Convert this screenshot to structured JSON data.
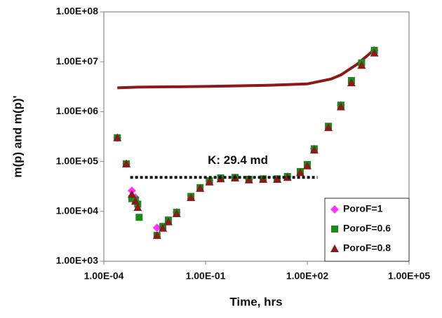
{
  "chart_data": {
    "type": "scatter",
    "x_label": "Time, hrs",
    "y_label": "m(p) and m(p)'",
    "log_x": true,
    "log_y": true,
    "legend": "lower right",
    "xlim": [
      0.0001,
      100000
    ],
    "xticks": [
      {
        "value": 0.0001,
        "label": "1.00E-04"
      },
      {
        "value": 0.1,
        "label": "1.00E-01"
      },
      {
        "value": 100,
        "label": "1.00E+02"
      },
      {
        "value": 100000,
        "label": "1.00E+05"
      }
    ],
    "ylim": [
      1000,
      100000000
    ],
    "yticks": [
      {
        "value": 1000,
        "label": "1.00E+03"
      },
      {
        "value": 10000,
        "label": "1.00E+04"
      },
      {
        "value": 100000,
        "label": "1.00E+05"
      },
      {
        "value": 1000000,
        "label": "1.00E+06"
      },
      {
        "value": 10000000,
        "label": "1.00E+07"
      },
      {
        "value": 100000000,
        "label": "1.00E+08"
      }
    ],
    "pressure": {
      "color": "#8b1a1a",
      "x": [
        0.00025,
        0.001,
        0.01,
        0.1,
        1,
        10,
        100,
        500,
        1000,
        3000,
        10000
      ],
      "values": [
        3000000,
        3100000,
        3150000,
        3200000,
        3300000,
        3400000,
        3600000,
        4500000,
        5500000,
        9000000,
        18000000
      ]
    },
    "series": [
      {
        "name": "PoroF=1",
        "color": "#ff33ff",
        "marker": "diamond",
        "x": [
          0.00025,
          0.00046,
          0.00067,
          0.00085,
          0.0037,
          0.014,
          0.13,
          1.9,
          26,
          160,
          980,
          9500
        ],
        "values": [
          300000,
          90000,
          26000,
          19000,
          4700,
          9600,
          41000,
          44000,
          50000,
          180000,
          1350000,
          17000000
        ]
      },
      {
        "name": "PoroF=0.6",
        "color": "#1a8a1a",
        "marker": "square",
        "x": [
          0.00025,
          0.00046,
          0.00067,
          0.00085,
          0.001,
          0.0011,
          0.0037,
          0.0055,
          0.008,
          0.014,
          0.037,
          0.069,
          0.13,
          0.28,
          0.74,
          1.9,
          5,
          13,
          26,
          62,
          100,
          160,
          420,
          980,
          2000,
          4000,
          9500
        ],
        "values": [
          300000,
          90000,
          18000,
          17000,
          14000,
          7600,
          3300,
          5000,
          6700,
          9600,
          20000,
          30000,
          41000,
          47000,
          48000,
          44000,
          45000,
          45000,
          50000,
          63000,
          87000,
          180000,
          510000,
          1350000,
          4200000,
          9500000,
          17000000
        ]
      },
      {
        "name": "PoroF=0.8",
        "color": "#8b1a1a",
        "marker": "triangle",
        "x": [
          0.00025,
          0.00046,
          0.00067,
          0.00085,
          0.001,
          0.0037,
          0.0055,
          0.008,
          0.014,
          0.037,
          0.069,
          0.13,
          0.28,
          0.74,
          1.9,
          5,
          13,
          26,
          62,
          100,
          160,
          420,
          980,
          2000,
          4000,
          9500
        ],
        "values": [
          300000,
          90000,
          22000,
          16000,
          12000,
          3300,
          4600,
          6200,
          9000,
          19000,
          29000,
          39000,
          45000,
          47000,
          43000,
          44000,
          44000,
          48000,
          60000,
          82000,
          170000,
          480000,
          1250000,
          3800000,
          8500000,
          15000000
        ]
      }
    ],
    "annotations": [
      {
        "text": "K: 29.4 md",
        "x": [
          0.0006,
          200
        ],
        "y": 48000
      }
    ]
  }
}
